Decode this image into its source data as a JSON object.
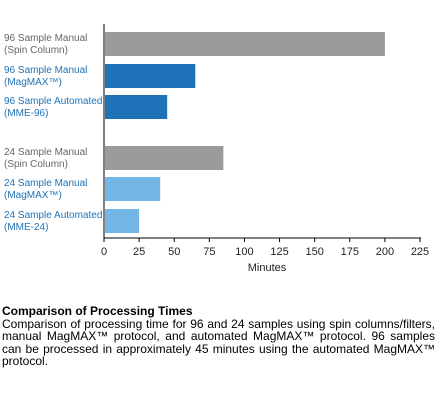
{
  "chart_data": {
    "type": "bar",
    "orientation": "horizontal",
    "categories": [
      [
        "96 Sample Manual",
        "(Spin Column)"
      ],
      [
        "96 Sample Manual",
        "(MagMAX™)"
      ],
      [
        "96 Sample Automated",
        "(MME-96)"
      ],
      [
        "24 Sample Manual",
        "(Spin Column)"
      ],
      [
        "24 Sample Manual",
        "(MagMAX™)"
      ],
      [
        "24 Sample Automated",
        "(MME-24)"
      ]
    ],
    "values": [
      200,
      65,
      45,
      85,
      40,
      25
    ],
    "bar_colors": [
      "#9b9b9b",
      "#1e73b8",
      "#1e73b8",
      "#9b9b9b",
      "#74b6e6",
      "#74b6e6"
    ],
    "label_colors": [
      "#666666",
      "#1e73b8",
      "#1e73b8",
      "#666666",
      "#1e73b8",
      "#1e73b8"
    ],
    "xlabel": "Minutes",
    "xlim": [
      0,
      225
    ],
    "xticks": [
      0,
      25,
      50,
      75,
      100,
      125,
      150,
      175,
      200,
      225
    ],
    "grid": false
  },
  "caption": {
    "title": "Comparison of Processing Times",
    "body": "Comparison of processing time for 96 and 24 samples using spin columns/filters, manual MagMAX™ protocol, and automated MagMAX™ protocol. 96 samples can be processed in approximately 45 minutes using the automated MagMAX™ protocol."
  }
}
